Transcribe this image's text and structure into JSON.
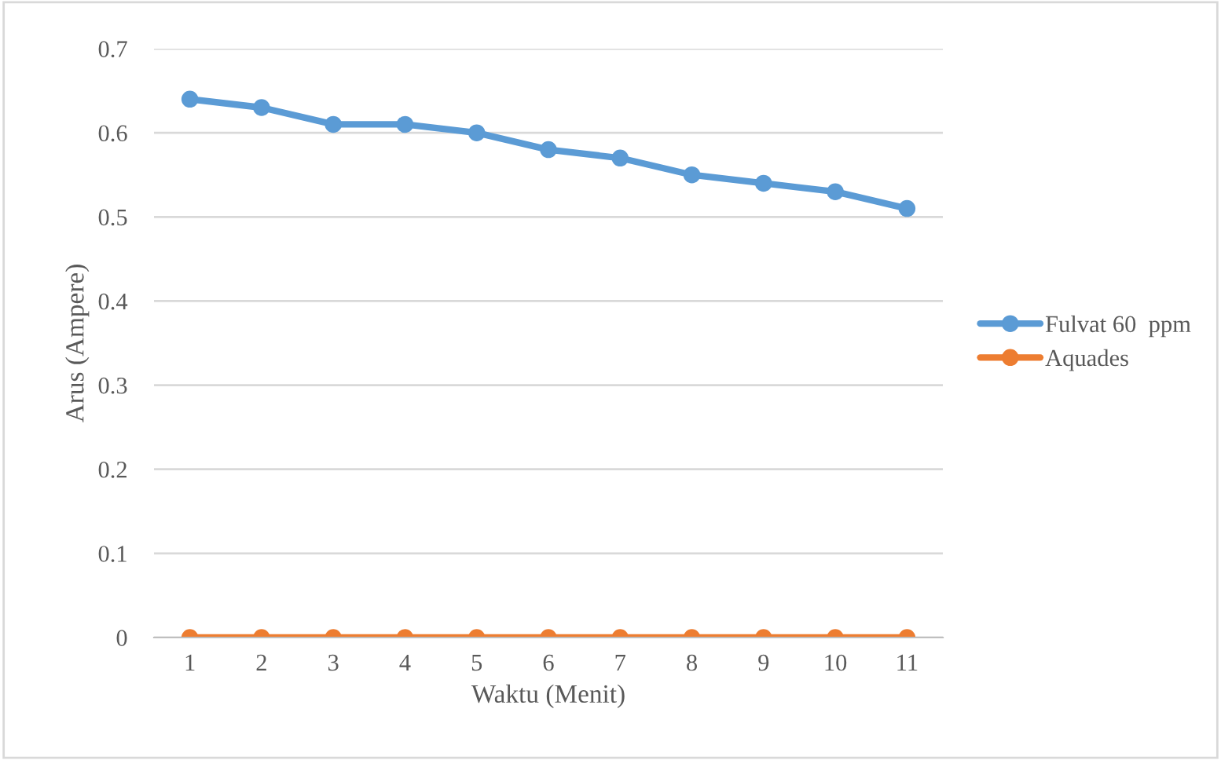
{
  "chart_data": {
    "type": "line",
    "xlabel": "Waktu (Menit)",
    "ylabel": "Arus (Ampere)",
    "categories": [
      "1",
      "2",
      "3",
      "4",
      "5",
      "6",
      "7",
      "8",
      "9",
      "10",
      "11"
    ],
    "series": [
      {
        "name": "Fulvat 60  ppm",
        "color": "#5b9bd5",
        "values": [
          0.64,
          0.63,
          0.61,
          0.61,
          0.6,
          0.58,
          0.57,
          0.55,
          0.54,
          0.53,
          0.51
        ]
      },
      {
        "name": "Aquades",
        "color": "#ed7d31",
        "values": [
          0,
          0,
          0,
          0,
          0,
          0,
          0,
          0,
          0,
          0,
          0
        ]
      }
    ],
    "ylim": [
      0,
      0.7
    ],
    "yticks": [
      {
        "value": 0,
        "label": "0"
      },
      0.1,
      0.2,
      0.3,
      0.4,
      0.5,
      0.6,
      0.7
    ],
    "grid": "y",
    "legend": "right",
    "marker": "circle",
    "line_style": "solid"
  }
}
